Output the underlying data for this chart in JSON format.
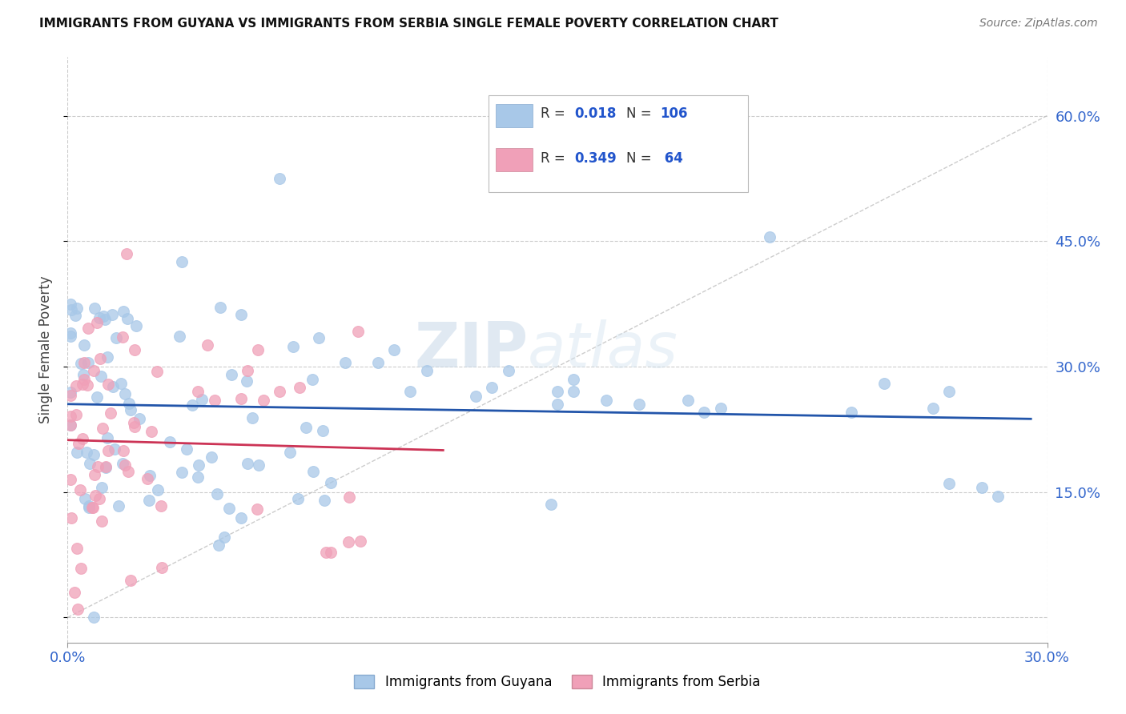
{
  "title": "IMMIGRANTS FROM GUYANA VS IMMIGRANTS FROM SERBIA SINGLE FEMALE POVERTY CORRELATION CHART",
  "source": "Source: ZipAtlas.com",
  "ylabel": "Single Female Poverty",
  "color_guyana": "#a8c8e8",
  "color_serbia": "#f0a0b8",
  "color_line_guyana": "#2255aa",
  "color_line_serbia": "#cc3355",
  "color_legend_text": "#2255cc",
  "color_tick": "#3366cc",
  "xmin": 0.0,
  "xmax": 0.3,
  "ymin": -0.03,
  "ymax": 0.67,
  "watermark_zip": "ZIP",
  "watermark_atlas": "atlas"
}
